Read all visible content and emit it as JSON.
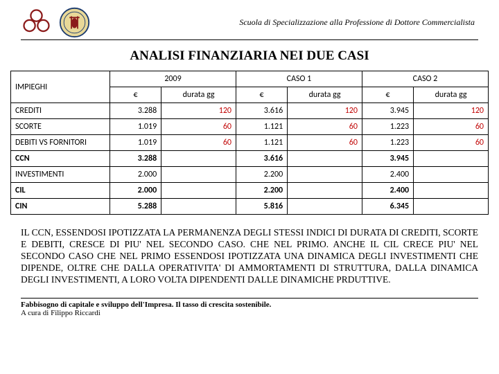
{
  "header": {
    "subtitle": "Scuola di Specializzazione alla Professione di Dottore Commercialista"
  },
  "title": "ANALISI FINANZIARIA NEI DUE CASI",
  "table": {
    "col_header_main": "IMPIEGHI",
    "groups": [
      "2009",
      "CASO 1",
      "CASO 2"
    ],
    "sub_headers": [
      "€",
      "durata gg"
    ],
    "rows": [
      {
        "label": "CREDITI",
        "bold": false,
        "cells": [
          "3.288",
          "120",
          "3.616",
          "120",
          "3.945",
          "120"
        ],
        "red_idx": [
          1,
          3,
          5
        ]
      },
      {
        "label": "SCORTE",
        "bold": false,
        "cells": [
          "1.019",
          "60",
          "1.121",
          "60",
          "1.223",
          "60"
        ],
        "red_idx": [
          1,
          3,
          5
        ]
      },
      {
        "label": "DEBITI VS FORNITORI",
        "bold": false,
        "cells": [
          "1.019",
          "60",
          "1.121",
          "60",
          "1.223",
          "60"
        ],
        "red_idx": [
          1,
          3,
          5
        ]
      },
      {
        "label": "CCN",
        "bold": true,
        "cells": [
          "3.288",
          "",
          "3.616",
          "",
          "3.945",
          ""
        ],
        "red_idx": []
      },
      {
        "label": "INVESTIMENTI",
        "bold": false,
        "cells": [
          "2.000",
          "",
          "2.200",
          "",
          "2.400",
          ""
        ],
        "red_idx": []
      },
      {
        "label": "CIL",
        "bold": true,
        "cells": [
          "2.000",
          "",
          "2.200",
          "",
          "2.400",
          ""
        ],
        "red_idx": []
      },
      {
        "label": "CIN",
        "bold": true,
        "cells": [
          "5.288",
          "",
          "5.816",
          "",
          "6.345",
          ""
        ],
        "red_idx": []
      }
    ]
  },
  "body_text": "IL CCN, ESSENDOSI IPOTIZZATA LA PERMANENZA DEGLI STESSI INDICI DI DURATA DI CREDITI, SCORTE E DEBITI, CRESCE DI PIU' NEL SECONDO CASO. CHE NEL PRIMO. ANCHE IL CIL CRECE PIU' NEL SECONDO CASO CHE NEL PRIMO ESSENDOSI IPOTIZZATA UNA DINAMICA DEGLI INVESTIMENTI CHE DIPENDE, OLTRE CHE DALLA OPERATIVITA' DI AMMORTAMENTI DI STRUTTURA, DALLA DINAMICA DEGLI INVESTIMENTI, A LORO VOLTA DIPENDENTI DALLE DINAMICHE PRDUTTIVE.",
  "footer": {
    "line1": "Fabbisogno di capitale e sviluppo dell'Impresa. Il tasso di crescita sostenibile.",
    "line2": "A cura di Filippo Riccardi"
  }
}
